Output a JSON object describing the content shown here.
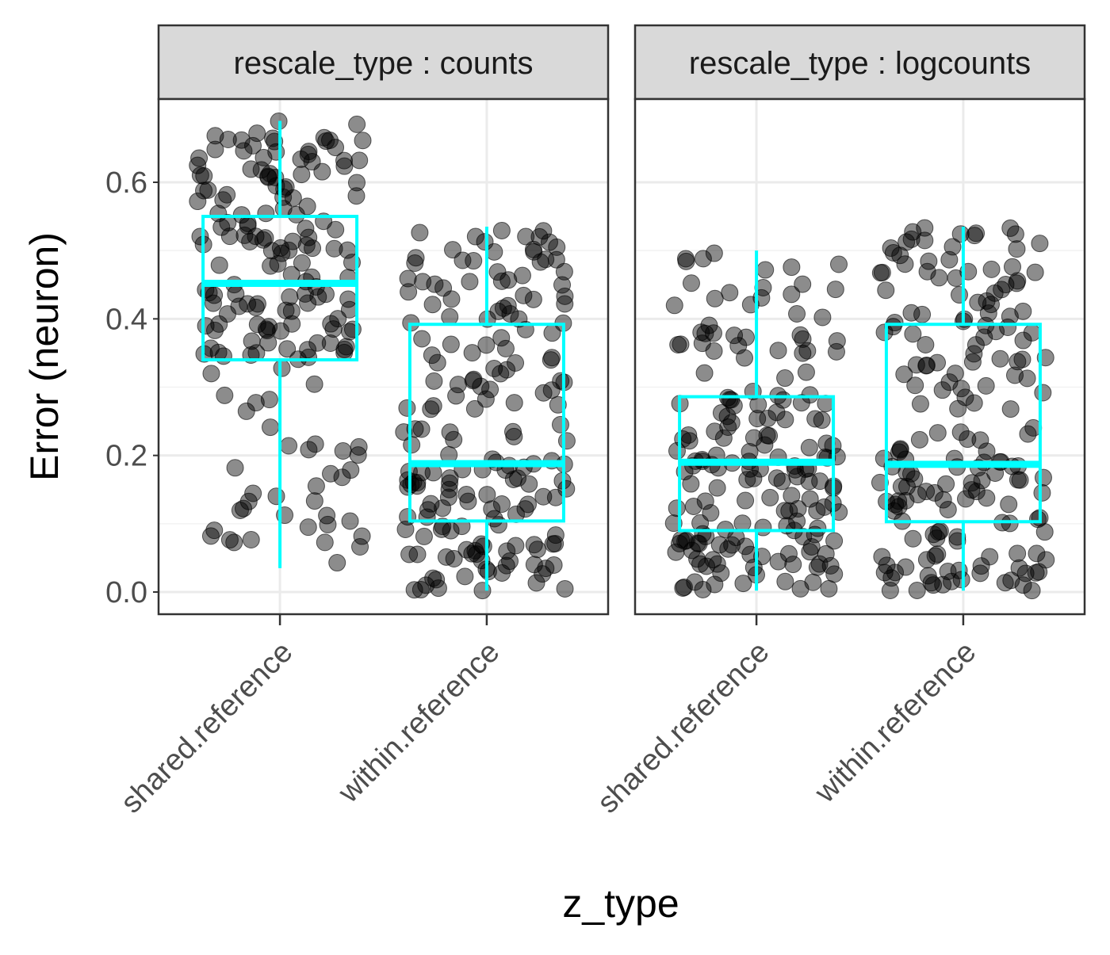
{
  "chart_data": {
    "type": "boxplot-jitter",
    "xlabel": "z_type",
    "ylabel": "Error (neuron)",
    "ylim": [
      -0.03,
      0.7
    ],
    "y_ticks": [
      "0.0",
      "0.2",
      "0.4",
      "0.6"
    ],
    "y_tick_values": [
      0.0,
      0.2,
      0.4,
      0.6
    ],
    "categories": [
      "shared.reference",
      "within.reference"
    ],
    "grid": true,
    "point_color": "#000000",
    "box_color": "#00ffff",
    "strip_fill": "#d9d9d9",
    "panels": [
      {
        "strip_label": "rescale_type : counts",
        "boxes": [
          {
            "category": "shared.reference",
            "min": 0.035,
            "q1": 0.34,
            "median": 0.452,
            "q3": 0.55,
            "max": 0.69
          },
          {
            "category": "within.reference",
            "min": 0.002,
            "q1": 0.104,
            "median": 0.188,
            "q3": 0.392,
            "max": 0.535
          }
        ]
      },
      {
        "strip_label": "rescale_type : logcounts",
        "boxes": [
          {
            "category": "shared.reference",
            "min": 0.002,
            "q1": 0.09,
            "median": 0.19,
            "q3": 0.286,
            "max": 0.5
          },
          {
            "category": "within.reference",
            "min": 0.002,
            "q1": 0.103,
            "median": 0.187,
            "q3": 0.392,
            "max": 0.535
          }
        ]
      }
    ]
  }
}
